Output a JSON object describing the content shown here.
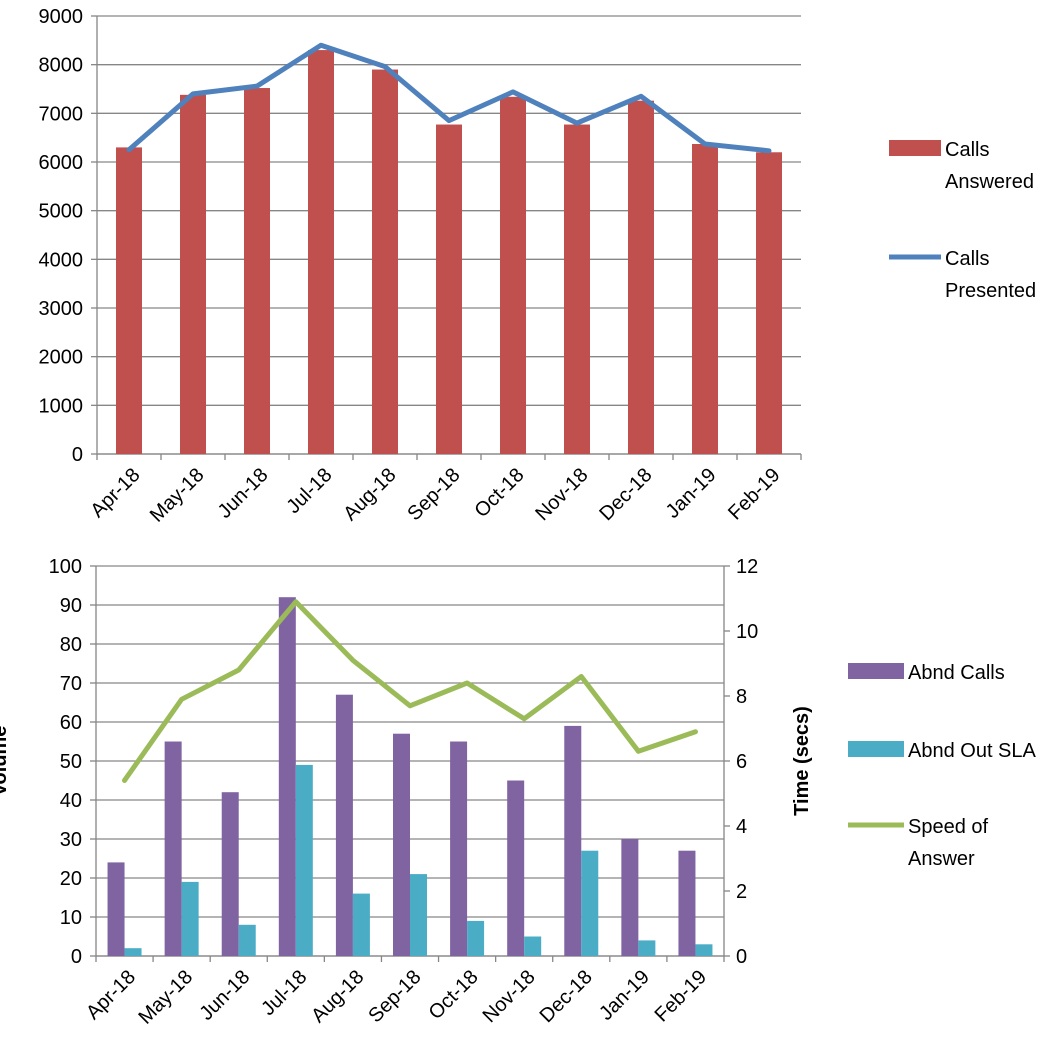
{
  "chart_data": [
    {
      "type": "bar",
      "categories": [
        "Apr-18",
        "May-18",
        "Jun-18",
        "Jul-18",
        "Aug-18",
        "Sep-18",
        "Oct-18",
        "Nov-18",
        "Dec-18",
        "Jan-19",
        "Feb-19"
      ],
      "ylim": [
        0,
        9000
      ],
      "yticks": [
        0,
        1000,
        2000,
        3000,
        4000,
        5000,
        6000,
        7000,
        8000,
        9000
      ],
      "grid": true,
      "legend_position": "right",
      "series": [
        {
          "name": "Calls Answered",
          "kind": "bar",
          "color": "#c0504d",
          "values": [
            6300,
            7380,
            7520,
            8300,
            7900,
            6770,
            7340,
            6770,
            7260,
            6370,
            6200
          ]
        },
        {
          "name": "Calls Presented",
          "kind": "line",
          "color": "#4f81bd",
          "values": [
            6250,
            7400,
            7560,
            8400,
            7960,
            6850,
            7440,
            6800,
            7350,
            6370,
            6230
          ]
        }
      ],
      "legend": [
        {
          "lines": [
            "Calls",
            "Answered"
          ],
          "symbol": "bar",
          "color": "#c0504d"
        },
        {
          "lines": [
            "Calls",
            "Presented"
          ],
          "symbol": "line",
          "color": "#4f81bd"
        }
      ]
    },
    {
      "type": "bar",
      "categories": [
        "Apr-18",
        "May-18",
        "Jun-18",
        "Jul-18",
        "Aug-18",
        "Sep-18",
        "Oct-18",
        "Nov-18",
        "Dec-18",
        "Jan-19",
        "Feb-19"
      ],
      "ylabel": "Volume",
      "y2label": "Time (secs)",
      "ylim": [
        0,
        100
      ],
      "y2lim": [
        0,
        12
      ],
      "yticks": [
        0,
        10,
        20,
        30,
        40,
        50,
        60,
        70,
        80,
        90,
        100
      ],
      "y2ticks": [
        0,
        2,
        4,
        6,
        8,
        10,
        12
      ],
      "grid": true,
      "legend_position": "right",
      "series": [
        {
          "name": "Abnd Calls",
          "kind": "bar",
          "color": "#8064a2",
          "values": [
            24,
            55,
            42,
            92,
            67,
            57,
            55,
            45,
            59,
            30,
            27
          ]
        },
        {
          "name": "Abnd Out SLA",
          "kind": "bar",
          "color": "#4bacc6",
          "values": [
            2,
            19,
            8,
            49,
            16,
            21,
            9,
            5,
            27,
            4,
            3
          ]
        },
        {
          "name": "Speed of Answer",
          "kind": "line",
          "axis": "y2",
          "color": "#9bbb59",
          "values": [
            5.4,
            7.9,
            8.8,
            10.9,
            9.1,
            7.7,
            8.4,
            7.3,
            8.6,
            6.3,
            6.9
          ]
        }
      ],
      "legend": [
        {
          "lines": [
            "Abnd Calls"
          ],
          "symbol": "bar",
          "color": "#8064a2"
        },
        {
          "lines": [
            "Abnd Out SLA"
          ],
          "symbol": "bar",
          "color": "#4bacc6"
        },
        {
          "lines": [
            "Speed of",
            "Answer"
          ],
          "symbol": "line",
          "color": "#9bbb59"
        }
      ]
    }
  ]
}
